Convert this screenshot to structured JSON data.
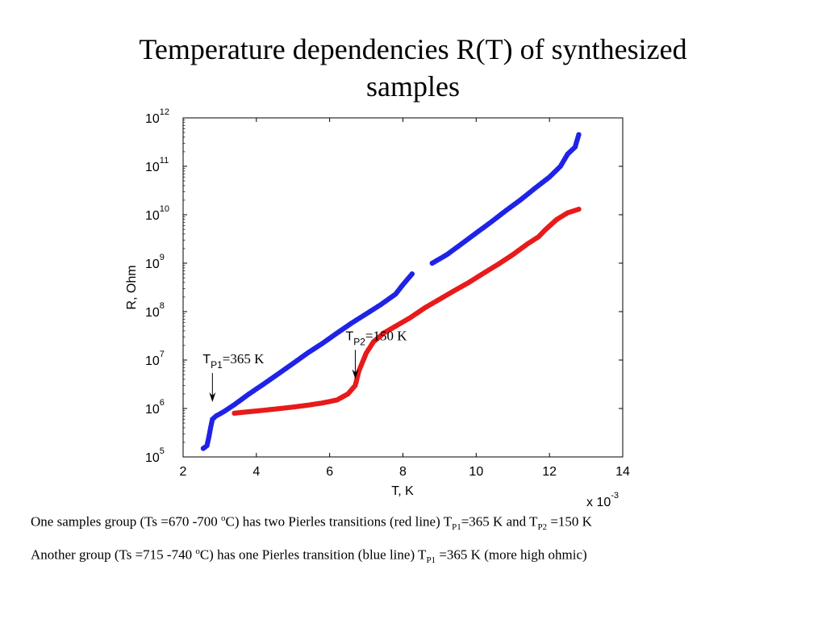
{
  "slide": {
    "title_line1": "Temperature dependencies R(T) of synthesized",
    "title_line2": "samples"
  },
  "chart_data": {
    "type": "scatter",
    "title": "",
    "xlabel": "T, K",
    "ylabel": "R, Ohm",
    "x_multiplier_label": "x 10",
    "x_multiplier_exp": "-3",
    "xlim": [
      2,
      14
    ],
    "x_ticks": [
      "2",
      "4",
      "6",
      "8",
      "10",
      "12",
      "14"
    ],
    "yscale": "log",
    "ylim": [
      100000,
      1000000000000
    ],
    "y_tick_base": "10",
    "y_tick_exps": [
      "5",
      "6",
      "7",
      "8",
      "9",
      "10",
      "11",
      "12"
    ],
    "grid": false,
    "series": [
      {
        "color": "#1f23e6",
        "points": [
          [
            2.55,
            150000
          ],
          [
            2.65,
            170000
          ],
          [
            2.7,
            250000
          ],
          [
            2.75,
            400000
          ],
          [
            2.8,
            600000
          ],
          [
            2.9,
            700000
          ],
          [
            3.1,
            850000
          ],
          [
            3.4,
            1200000
          ],
          [
            3.8,
            2000000
          ],
          [
            4.2,
            3200000
          ],
          [
            4.6,
            5200000
          ],
          [
            5.0,
            8500000
          ],
          [
            5.4,
            14000000
          ],
          [
            5.8,
            22000000
          ],
          [
            6.2,
            36000000
          ],
          [
            6.6,
            58000000
          ],
          [
            7.0,
            90000000
          ],
          [
            7.4,
            140000000
          ],
          [
            7.8,
            230000000
          ],
          [
            8.0,
            360000000
          ],
          [
            8.25,
            600000000
          ],
          [
            8.8,
            1000000000
          ],
          [
            9.2,
            1500000000
          ],
          [
            9.6,
            2500000000
          ],
          [
            10.0,
            4200000000
          ],
          [
            10.4,
            7000000000
          ],
          [
            10.8,
            12000000000
          ],
          [
            11.2,
            20000000000
          ],
          [
            11.6,
            35000000000
          ],
          [
            12.0,
            60000000000
          ],
          [
            12.3,
            100000000000
          ],
          [
            12.5,
            180000000000
          ],
          [
            12.7,
            250000000000
          ],
          [
            12.8,
            450000000000
          ]
        ]
      },
      {
        "color": "#e81a1a",
        "points": [
          [
            3.4,
            800000
          ],
          [
            3.8,
            860000
          ],
          [
            4.2,
            920000
          ],
          [
            4.6,
            990000
          ],
          [
            5.0,
            1070000
          ],
          [
            5.4,
            1170000
          ],
          [
            5.8,
            1300000
          ],
          [
            6.2,
            1500000
          ],
          [
            6.5,
            2000000
          ],
          [
            6.7,
            3000000
          ],
          [
            6.8,
            6000000
          ],
          [
            7.0,
            14000000
          ],
          [
            7.2,
            24000000
          ],
          [
            7.5,
            37000000
          ],
          [
            7.8,
            50000000
          ],
          [
            8.2,
            75000000
          ],
          [
            8.6,
            120000000
          ],
          [
            9.0,
            180000000
          ],
          [
            9.4,
            270000000
          ],
          [
            9.8,
            400000000
          ],
          [
            10.2,
            620000000
          ],
          [
            10.6,
            950000000
          ],
          [
            11.0,
            1500000000
          ],
          [
            11.4,
            2500000000
          ],
          [
            11.7,
            3500000000
          ],
          [
            11.9,
            5000000000
          ],
          [
            12.2,
            8000000000
          ],
          [
            12.5,
            11000000000
          ],
          [
            12.8,
            13000000000
          ]
        ]
      }
    ],
    "annotations": [
      {
        "main": "T",
        "sub": "P1",
        "rest": "=365 K",
        "x": 2.8,
        "y": 1000000
      },
      {
        "main": "T",
        "sub": "P2",
        "rest": "=150 K",
        "x": 6.7,
        "y": 3000000
      }
    ]
  },
  "notes": [
    {
      "part1": "One samples group (Ts =670 -700 ",
      "sup": "o",
      "part2": "C) has two Pierles transitions (red line) T",
      "sub1": "P1",
      "part3": "=365 K and T",
      "sub2": "P2",
      "part4": " =150 K"
    },
    {
      "part1": "Another group (Ts =715 -740 ",
      "sup": "o",
      "part2": "C) has one Pierles transition (blue line) T",
      "sub1": "P1",
      "part3": " =365 K (more high ohmic)"
    }
  ]
}
